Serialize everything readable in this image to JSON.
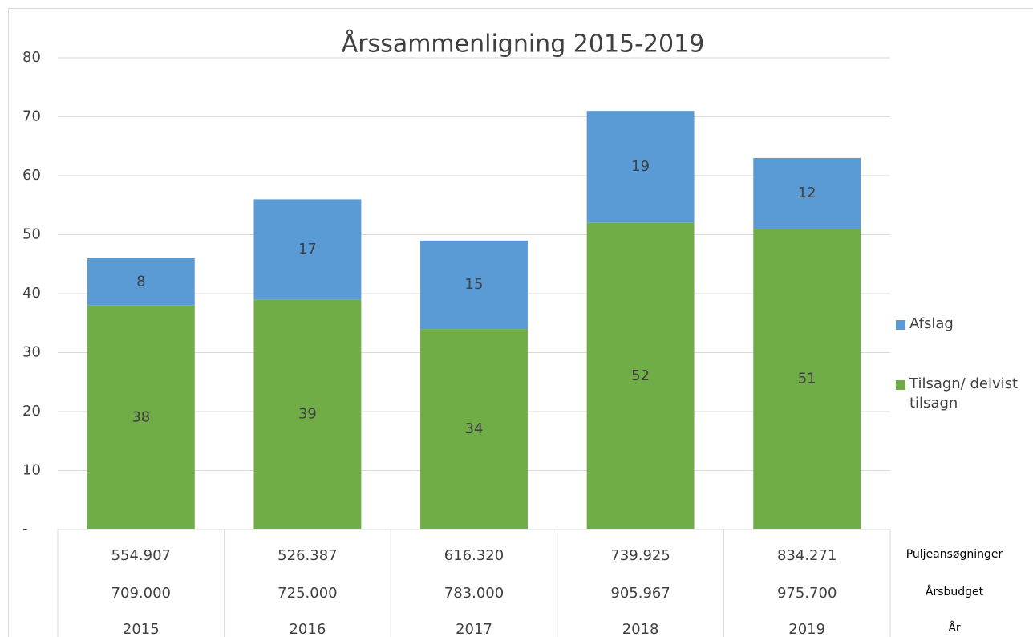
{
  "chart_data": {
    "type": "stacked_bar",
    "title": "Årssammenligning 2015-2019",
    "categories": [
      "2015",
      "2016",
      "2017",
      "2018",
      "2019"
    ],
    "series": [
      {
        "name": "Tilsagn/ delvist tilsagn",
        "color": "#70ad47",
        "values": [
          38,
          39,
          34,
          52,
          51
        ]
      },
      {
        "name": "Afslag",
        "color": "#5b9bd5",
        "values": [
          8,
          17,
          15,
          19,
          12
        ]
      }
    ],
    "ylim": [
      0,
      80
    ],
    "yticks": [
      {
        "value": 0,
        "label": "-"
      },
      10,
      20,
      30,
      40,
      50,
      60,
      70,
      80
    ],
    "grid": true,
    "legend": "right",
    "data_table": {
      "rows": [
        {
          "label": "Puljeansøgninger",
          "values": [
            "554.907",
            "526.387",
            "616.320",
            "739.925",
            "834.271"
          ]
        },
        {
          "label": "Årsbudget",
          "values": [
            "709.000",
            "725.000",
            "783.000",
            "905.967",
            "975.700"
          ]
        },
        {
          "label": "År"
        }
      ]
    }
  }
}
